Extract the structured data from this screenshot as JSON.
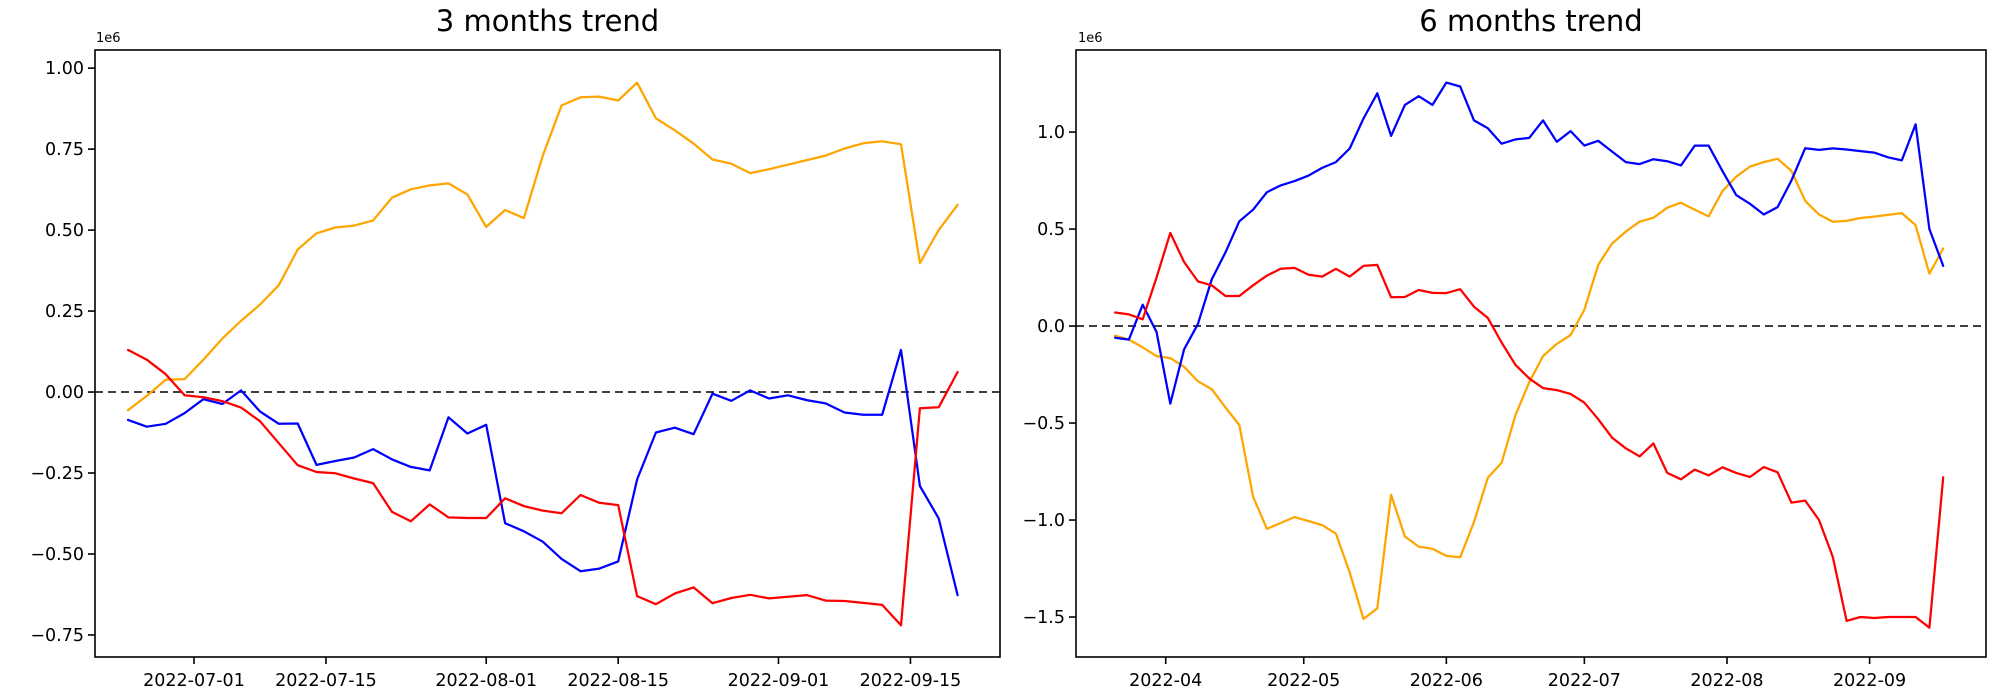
{
  "figure": {
    "background_color": "#ffffff",
    "axis_color": "#000000",
    "zero_line_color": "#000000",
    "zero_line_style": "dashed"
  },
  "chart_data": [
    {
      "type": "line",
      "title": "3 months trend",
      "offset_label": "1e6",
      "x_start_date": "2022-06-24",
      "x_step_days": 2,
      "xlim_days": [
        -3.5,
        92.5
      ],
      "ylim": [
        -818000,
        1056000
      ],
      "grid": false,
      "legend": "none",
      "zero_line": true,
      "x_ticks": [
        {
          "day": 7,
          "label": "2022-07-01"
        },
        {
          "day": 21,
          "label": "2022-07-15"
        },
        {
          "day": 38,
          "label": "2022-08-01"
        },
        {
          "day": 52,
          "label": "2022-08-15"
        },
        {
          "day": 69,
          "label": "2022-09-01"
        },
        {
          "day": 83,
          "label": "2022-09-15"
        }
      ],
      "y_ticks": [
        {
          "value": 1000000,
          "label": "1.00"
        },
        {
          "value": 750000,
          "label": "0.75"
        },
        {
          "value": 500000,
          "label": "0.50"
        },
        {
          "value": 250000,
          "label": "0.25"
        },
        {
          "value": 0,
          "label": "0.00"
        },
        {
          "value": -250000,
          "label": "−0.25"
        },
        {
          "value": -500000,
          "label": "−0.50"
        },
        {
          "value": -750000,
          "label": "−0.75"
        }
      ],
      "series": [
        {
          "name": "orange",
          "color": "#FFA500",
          "values": [
            -56000,
            -12000,
            38000,
            40000,
            100000,
            165000,
            220000,
            270000,
            330000,
            440000,
            490000,
            508000,
            514000,
            530000,
            600000,
            626000,
            638000,
            644000,
            610000,
            510000,
            562000,
            537000,
            730000,
            885000,
            910000,
            912000,
            900000,
            955000,
            845000,
            808000,
            767000,
            718000,
            705000,
            676000,
            688000,
            702000,
            716000,
            730000,
            752000,
            768000,
            774000,
            765000,
            398000,
            500000,
            578000
          ]
        },
        {
          "name": "blue",
          "color": "#0000FF",
          "values": [
            -86000,
            -107000,
            -98000,
            -65000,
            -22000,
            -37000,
            5000,
            -60000,
            -98000,
            -97000,
            -225000,
            -213000,
            -202000,
            -176000,
            -208000,
            -231000,
            -242000,
            -78000,
            -128000,
            -101000,
            -405000,
            -430000,
            -462000,
            -515000,
            -553000,
            -545000,
            -523000,
            -270000,
            -125000,
            -110000,
            -130000,
            -5000,
            -27000,
            5000,
            -20000,
            -10000,
            -25000,
            -35000,
            -63000,
            -70000,
            -70000,
            130000,
            -290000,
            -390000,
            -627000
          ]
        },
        {
          "name": "red",
          "color": "#FF0000",
          "values": [
            130000,
            100000,
            55000,
            -10000,
            -16000,
            -28000,
            -48000,
            -90000,
            -158000,
            -226000,
            -247000,
            -251000,
            -267000,
            -281000,
            -370000,
            -399000,
            -347000,
            -387000,
            -389000,
            -389000,
            -328000,
            -352000,
            -366000,
            -374000,
            -318000,
            -342000,
            -349000,
            -630000,
            -655000,
            -622000,
            -603000,
            -652000,
            -636000,
            -626000,
            -637000,
            -632000,
            -627000,
            -644000,
            -645000,
            -651000,
            -657000,
            -720000,
            -50000,
            -47000,
            62000
          ]
        }
      ]
    },
    {
      "type": "line",
      "title": "6 months trend",
      "offset_label": "1e6",
      "x_start_date": "2022-03-21",
      "x_step_days": 3,
      "xlim_days": [
        -8.5,
        189.3
      ],
      "ylim": [
        -1706000,
        1423000
      ],
      "grid": false,
      "legend": "none",
      "zero_line": true,
      "x_ticks": [
        {
          "day": 11,
          "label": "2022-04"
        },
        {
          "day": 41,
          "label": "2022-05"
        },
        {
          "day": 72,
          "label": "2022-06"
        },
        {
          "day": 102,
          "label": "2022-07"
        },
        {
          "day": 133,
          "label": "2022-08"
        },
        {
          "day": 164,
          "label": "2022-09"
        }
      ],
      "y_ticks": [
        {
          "value": 1000000,
          "label": "1.0"
        },
        {
          "value": 500000,
          "label": "0.5"
        },
        {
          "value": 0,
          "label": "0.0"
        },
        {
          "value": -500000,
          "label": "−0.5"
        },
        {
          "value": -1000000,
          "label": "−1.0"
        },
        {
          "value": -1500000,
          "label": "−1.5"
        }
      ],
      "series": [
        {
          "name": "orange",
          "color": "#FFA500",
          "values": [
            -50000,
            -70000,
            -110000,
            -155000,
            -165000,
            -210000,
            -285000,
            -325000,
            -420000,
            -510000,
            -880000,
            -1045000,
            -1015000,
            -985000,
            -1005000,
            -1026000,
            -1070000,
            -1270000,
            -1510000,
            -1455000,
            -870000,
            -1085000,
            -1137000,
            -1148000,
            -1185000,
            -1192000,
            -1010000,
            -782000,
            -705000,
            -460000,
            -290000,
            -155000,
            -92000,
            -46000,
            85000,
            315000,
            425000,
            487000,
            538000,
            558000,
            610000,
            636000,
            600000,
            565000,
            695000,
            770000,
            822000,
            845000,
            862000,
            800000,
            645000,
            575000,
            538000,
            542000,
            557000,
            564000,
            573000,
            582000,
            520000,
            270000,
            400000
          ]
        },
        {
          "name": "blue",
          "color": "#0000FF",
          "values": [
            -60000,
            -70000,
            110000,
            -30000,
            -400000,
            -120000,
            10000,
            240000,
            380000,
            540000,
            600000,
            690000,
            725000,
            747000,
            775000,
            815000,
            845000,
            915000,
            1070000,
            1200000,
            980000,
            1140000,
            1185000,
            1140000,
            1255000,
            1235000,
            1060000,
            1020000,
            940000,
            962000,
            970000,
            1060000,
            950000,
            1005000,
            930000,
            955000,
            900000,
            845000,
            835000,
            860000,
            850000,
            828000,
            930000,
            930000,
            800000,
            675000,
            630000,
            575000,
            613000,
            750000,
            917000,
            908000,
            916000,
            910000,
            902000,
            894000,
            870000,
            854000,
            1040000,
            500000,
            310000
          ]
        },
        {
          "name": "red",
          "color": "#FF0000",
          "values": [
            70000,
            60000,
            35000,
            250000,
            480000,
            330000,
            230000,
            210000,
            155000,
            155000,
            210000,
            260000,
            295000,
            300000,
            265000,
            255000,
            295000,
            255000,
            310000,
            315000,
            148000,
            150000,
            186000,
            171000,
            170000,
            190000,
            100000,
            42000,
            -85000,
            -200000,
            -270000,
            -320000,
            -330000,
            -350000,
            -395000,
            -480000,
            -575000,
            -630000,
            -672000,
            -605000,
            -757000,
            -790000,
            -740000,
            -770000,
            -728000,
            -757000,
            -778000,
            -727000,
            -754000,
            -910000,
            -900000,
            -1000000,
            -1190000,
            -1520000,
            -1500000,
            -1505000,
            -1500000,
            -1500000,
            -1500000,
            -1555000,
            -780000
          ]
        }
      ]
    }
  ]
}
